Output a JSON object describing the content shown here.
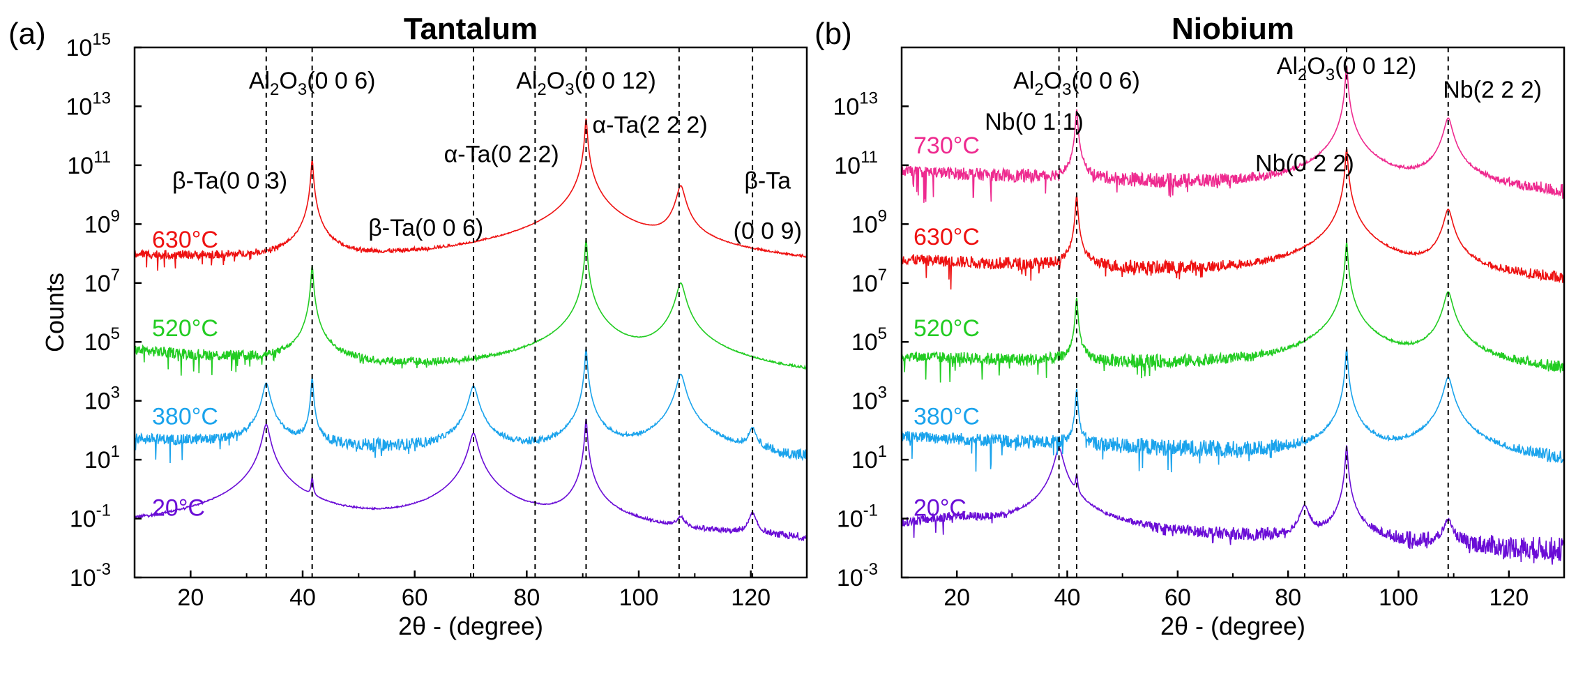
{
  "figure": {
    "description_free": true
  },
  "chart_data": [
    {
      "type": "line",
      "panel_label": "(a)",
      "title": "Tantalum",
      "xlabel": "2θ - (degree)",
      "ylabel": "Counts",
      "xlim": [
        10,
        130
      ],
      "ylim_log10": [
        -3,
        15
      ],
      "x_ticks": [
        20,
        40,
        60,
        80,
        100,
        120
      ],
      "y_ticks": [
        {
          "base": "10",
          "exp": "-3"
        },
        {
          "base": "10",
          "exp": "-1"
        },
        {
          "base": "10",
          "exp": "1"
        },
        {
          "base": "10",
          "exp": "3"
        },
        {
          "base": "10",
          "exp": "5"
        },
        {
          "base": "10",
          "exp": "7"
        },
        {
          "base": "10",
          "exp": "9"
        },
        {
          "base": "10",
          "exp": "11"
        },
        {
          "base": "10",
          "exp": "13"
        },
        {
          "base": "10",
          "exp": "15"
        }
      ],
      "series": [
        {
          "name": "20°C",
          "color": "#6a0dd6",
          "baseline_log10": [
            [
              10,
              -1.5
            ],
            [
              130,
              -2.3
            ]
          ],
          "peaks": [
            {
              "x": 33.5,
              "log10": 2.2,
              "w": 0.5
            },
            {
              "x": 38,
              "log10": -1.4,
              "w": 1.0
            },
            {
              "x": 41.7,
              "log10": 0.3,
              "w": 0.15
            },
            {
              "x": 70.5,
              "log10": 1.9,
              "w": 0.6
            },
            {
              "x": 81.5,
              "log10": -1.8,
              "w": 0.6
            },
            {
              "x": 90.6,
              "log10": 2.4,
              "w": 0.15
            },
            {
              "x": 107.5,
              "log10": -1.2,
              "w": 0.6
            },
            {
              "x": 120.3,
              "log10": -0.9,
              "w": 0.6
            }
          ]
        },
        {
          "name": "380°C",
          "color": "#1aa3ec",
          "baseline_log10": [
            [
              10,
              1.7
            ],
            [
              130,
              0.7
            ]
          ],
          "peaks": [
            {
              "x": 33.5,
              "log10": 3.6,
              "w": 0.5
            },
            {
              "x": 41.7,
              "log10": 3.8,
              "w": 0.15
            },
            {
              "x": 70.5,
              "log10": 3.5,
              "w": 0.6
            },
            {
              "x": 90.6,
              "log10": 4.8,
              "w": 0.15
            },
            {
              "x": 107.5,
              "log10": 3.9,
              "w": 0.6
            },
            {
              "x": 120.3,
              "log10": 2.0,
              "w": 0.6
            }
          ]
        },
        {
          "name": "520°C",
          "color": "#22cc22",
          "baseline_log10": [
            [
              10,
              4.7
            ],
            [
              130,
              2.9
            ]
          ],
          "peaks": [
            {
              "x": 41.7,
              "log10": 7.6,
              "w": 0.15
            },
            {
              "x": 90.6,
              "log10": 8.5,
              "w": 0.15
            },
            {
              "x": 107.5,
              "log10": 7.0,
              "w": 0.6
            }
          ]
        },
        {
          "name": "630°C",
          "color": "#ee1111",
          "baseline_log10": [
            [
              10,
              7.9
            ],
            [
              130,
              6.7
            ]
          ],
          "peaks": [
            {
              "x": 41.7,
              "log10": 11.2,
              "w": 0.15
            },
            {
              "x": 90.6,
              "log10": 12.6,
              "w": 0.15
            },
            {
              "x": 107.5,
              "log10": 10.3,
              "w": 0.6
            }
          ]
        }
      ],
      "vlines": [
        33.5,
        41.7,
        70.5,
        81.5,
        90.6,
        107.2,
        120.3
      ],
      "peak_labels": [
        {
          "text": "β-Ta(0 0 3)",
          "x": 27,
          "log10": 10.2
        },
        {
          "text": "Al",
          "sub": "2",
          "text2": "O",
          "sub2": "3",
          "text3": "(0 0 6)",
          "x": 41.7,
          "log10": 13.6
        },
        {
          "text": "β-Ta(0 0 6)",
          "x": 62,
          "log10": 8.6
        },
        {
          "text": "α-Ta(0 2 2)",
          "x": 75.5,
          "log10": 11.1
        },
        {
          "text": "Al",
          "sub": "2",
          "text2": "O",
          "sub2": "3",
          "text3": "(0 0 12)",
          "x": 90.6,
          "log10": 13.6
        },
        {
          "text": "α-Ta(2 2 2)",
          "x": 102,
          "log10": 12.1
        },
        {
          "text": "β-Ta",
          "x": 123,
          "log10": 10.2
        },
        {
          "text": "(0 0 9)",
          "x": 123,
          "log10": 8.5
        }
      ],
      "temp_labels": [
        {
          "text": "630°C",
          "color": "#ee1111",
          "log10": 8.2
        },
        {
          "text": "520°C",
          "color": "#22cc22",
          "log10": 5.2
        },
        {
          "text": "380°C",
          "color": "#1aa3ec",
          "log10": 2.2
        },
        {
          "text": "20°C",
          "color": "#6a0dd6",
          "log10": -0.9
        }
      ]
    },
    {
      "type": "line",
      "panel_label": "(b)",
      "title": "Niobium",
      "xlabel": "2θ - (degree)",
      "ylabel": "",
      "xlim": [
        10,
        130
      ],
      "ylim_log10": [
        -3,
        15
      ],
      "x_ticks": [
        20,
        40,
        60,
        80,
        100,
        120
      ],
      "y_ticks": [
        {
          "base": "10",
          "exp": "-3"
        },
        {
          "base": "10",
          "exp": "-1"
        },
        {
          "base": "10",
          "exp": "1"
        },
        {
          "base": "10",
          "exp": "3"
        },
        {
          "base": "10",
          "exp": "5"
        },
        {
          "base": "10",
          "exp": "7"
        },
        {
          "base": "10",
          "exp": "9"
        },
        {
          "base": "10",
          "exp": "11"
        },
        {
          "base": "10",
          "exp": "13"
        }
      ],
      "series": [
        {
          "name": "20°C",
          "color": "#6a0dd6",
          "baseline_log10": [
            [
              10,
              -1.2
            ],
            [
              20,
              -1.0
            ],
            [
              35,
              -1.5
            ],
            [
              130,
              -2.2
            ]
          ],
          "peaks": [
            {
              "x": 38.5,
              "log10": 1.4,
              "w": 0.6
            },
            {
              "x": 41.7,
              "log10": 0.4,
              "w": 0.15
            },
            {
              "x": 83,
              "log10": -0.6,
              "w": 0.7
            },
            {
              "x": 90.6,
              "log10": 1.5,
              "w": 0.15
            },
            {
              "x": 109,
              "log10": -1.1,
              "w": 0.7
            }
          ]
        },
        {
          "name": "380°C",
          "color": "#1aa3ec",
          "baseline_log10": [
            [
              10,
              1.8
            ],
            [
              130,
              0.7
            ]
          ],
          "peaks": [
            {
              "x": 41.7,
              "log10": 3.4,
              "w": 0.15
            },
            {
              "x": 90.6,
              "log10": 4.8,
              "w": 0.15
            },
            {
              "x": 109,
              "log10": 3.8,
              "w": 0.6
            }
          ]
        },
        {
          "name": "520°C",
          "color": "#22cc22",
          "baseline_log10": [
            [
              10,
              4.5
            ],
            [
              130,
              3.7
            ]
          ],
          "peaks": [
            {
              "x": 41.7,
              "log10": 6.5,
              "w": 0.15
            },
            {
              "x": 90.6,
              "log10": 8.4,
              "w": 0.15
            },
            {
              "x": 109,
              "log10": 6.7,
              "w": 0.6
            }
          ]
        },
        {
          "name": "630°C",
          "color": "#ee1111",
          "baseline_log10": [
            [
              10,
              7.8
            ],
            [
              130,
              6.7
            ]
          ],
          "peaks": [
            {
              "x": 41.7,
              "log10": 10.0,
              "w": 0.15
            },
            {
              "x": 90.6,
              "log10": 11.6,
              "w": 0.15
            },
            {
              "x": 109,
              "log10": 9.5,
              "w": 0.6
            }
          ]
        },
        {
          "name": "730°C",
          "color": "#ee2a8f",
          "baseline_log10": [
            [
              10,
              10.8
            ],
            [
              130,
              9.7
            ]
          ],
          "peaks": [
            {
              "x": 41.7,
              "log10": 12.9,
              "w": 0.15
            },
            {
              "x": 90.6,
              "log10": 14.4,
              "w": 0.15
            },
            {
              "x": 109,
              "log10": 12.6,
              "w": 0.6
            }
          ]
        }
      ],
      "vlines": [
        38.5,
        41.7,
        83,
        90.6,
        109
      ],
      "peak_labels": [
        {
          "text": "Nb(0 1 1)",
          "x": 34,
          "log10": 12.2
        },
        {
          "text": "Al",
          "sub": "2",
          "text2": "O",
          "sub2": "3",
          "text3": "(0 0 6)",
          "x": 41.7,
          "log10": 13.6
        },
        {
          "text": "Nb(0 2 2)",
          "x": 83,
          "log10": 10.8
        },
        {
          "text": "Al",
          "sub": "2",
          "text2": "O",
          "sub2": "3",
          "text3": "(0 0 12)",
          "x": 90.6,
          "log10": 14.1
        },
        {
          "text": "Nb(2 2 2)",
          "x": 117,
          "log10": 13.3
        }
      ],
      "temp_labels": [
        {
          "text": "730°C",
          "color": "#ee2a8f",
          "log10": 11.4
        },
        {
          "text": "630°C",
          "color": "#ee1111",
          "log10": 8.3
        },
        {
          "text": "520°C",
          "color": "#22cc22",
          "log10": 5.2
        },
        {
          "text": "380°C",
          "color": "#1aa3ec",
          "log10": 2.2
        },
        {
          "text": "20°C",
          "color": "#6a0dd6",
          "log10": -0.9
        }
      ]
    }
  ]
}
